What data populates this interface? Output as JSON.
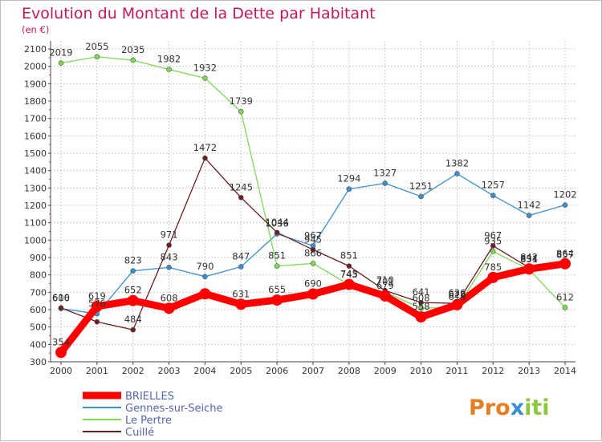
{
  "colors": {
    "title": "#c2185b",
    "subtitle": "#c2185b",
    "grid": "#cccccc",
    "axis": "#444444",
    "tick_minor": "#cc4444",
    "logo_p": "#e67e22",
    "logo_x": "#3a8fd0",
    "logo_i": "#8dc63f"
  },
  "chart_data": {
    "type": "line",
    "title": "Evolution du Montant de la Dette par Habitant",
    "subtitle": "(en €)",
    "x": [
      "2000",
      "2001",
      "2002",
      "2003",
      "2004",
      "2005",
      "2006",
      "2007",
      "2008",
      "2009",
      "2010",
      "2011",
      "2012",
      "2013",
      "2014"
    ],
    "ylim": [
      300,
      2100
    ],
    "yticks": [
      300,
      400,
      500,
      600,
      700,
      800,
      900,
      1000,
      1100,
      1200,
      1300,
      1400,
      1500,
      1600,
      1700,
      1800,
      1900,
      2000,
      2100
    ],
    "grid": true,
    "legend_position": "bottom-left",
    "series": [
      {
        "name": "BRIELLES",
        "color": "#ff0000",
        "values": [
          354,
          619,
          652,
          608,
          691,
          631,
          655,
          690,
          745,
          679,
          558,
          628,
          785,
          834,
          864
        ],
        "labels": [
          "354",
          "619",
          "652",
          "608",
          "",
          "631",
          "655",
          "690",
          "745",
          "679",
          "558",
          "628",
          "785",
          "834",
          "864"
        ]
      },
      {
        "name": "Gennes-sur-Seiche",
        "color": "#3b8fd0",
        "values": [
          606,
          576,
          823,
          843,
          790,
          847,
          1036,
          967,
          1294,
          1327,
          1251,
          1382,
          1257,
          1142,
          1202
        ],
        "labels": [
          "606",
          "576",
          "823",
          "843",
          "790",
          "847",
          "1036",
          "967",
          "1294",
          "1327",
          "1251",
          "1382",
          "1257",
          "1142",
          "1202"
        ]
      },
      {
        "name": "Le Pertre",
        "color": "#7ed957",
        "values": [
          2019,
          2055,
          2035,
          1982,
          1932,
          1739,
          851,
          866,
          743,
          701,
          608,
          613,
          935,
          831,
          612
        ],
        "labels": [
          "2019",
          "2055",
          "2035",
          "1982",
          "1932",
          "1739",
          "851",
          "866",
          "743",
          "701",
          "608",
          "613",
          "935",
          "831",
          "612"
        ]
      },
      {
        "name": "Cuillé",
        "color": "#6b1d22",
        "values": [
          610,
          530,
          484,
          971,
          1472,
          1245,
          1044,
          945,
          851,
          710,
          641,
          636,
          967,
          842,
          857
        ],
        "labels": [
          "610",
          "",
          "484",
          "971",
          "1472",
          "1245",
          "1044",
          "945",
          "851",
          "710",
          "641",
          "636",
          "967",
          "842",
          "857"
        ]
      }
    ]
  },
  "logo": {
    "text": "Proxiti"
  }
}
